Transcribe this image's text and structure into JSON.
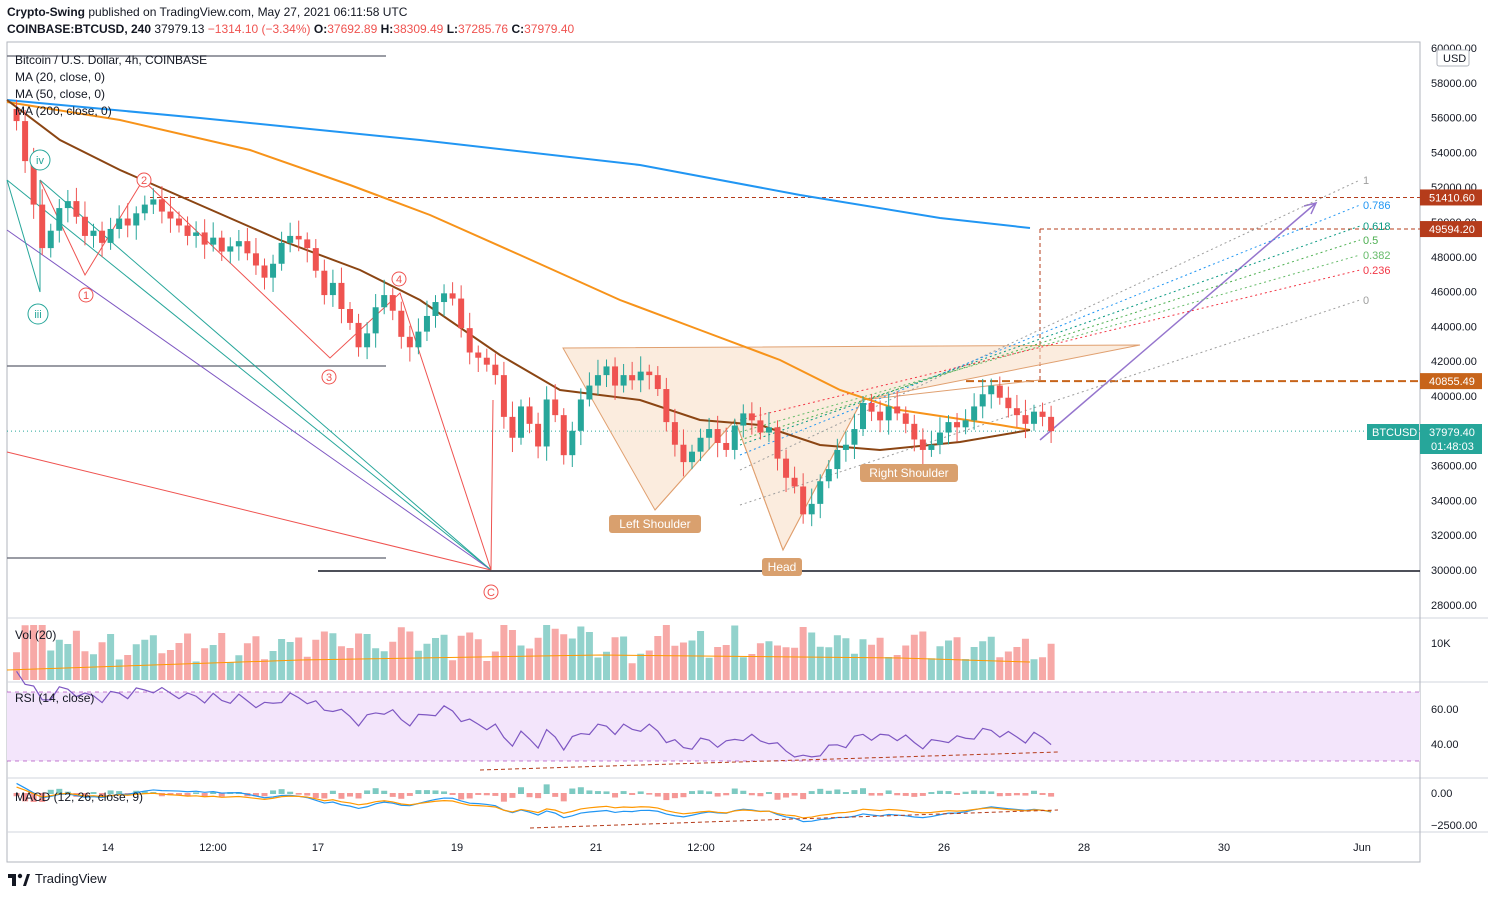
{
  "header": {
    "publisher": "Crypto-Swing",
    "published_line": "published on TradingView.com, May 27, 2021 06:11:58 UTC",
    "symbol": "COINBASE:BTCUSD, 240",
    "last": "37979.13",
    "change": "−1314.10 (−3.34%)",
    "o_label": "O:",
    "o": "37692.89",
    "h_label": "H:",
    "h": "38309.49",
    "l_label": "L:",
    "l": "37285.76",
    "c_label": "C:",
    "c": "37979.40"
  },
  "legend": {
    "title": "Bitcoin / U.S. Dollar, 4h, COINBASE",
    "ma20": "MA (20, close, 0)",
    "ma50": "MA (50, close, 0)",
    "ma200": "MA (200, close, 0)"
  },
  "panes": {
    "vol": "Vol (20)",
    "rsi": "RSI (14, close)",
    "macd": "MACD (12, 26, close, 9)"
  },
  "footer": {
    "brand": "TradingView"
  },
  "colors": {
    "up": "#26a69a",
    "down": "#ef5350",
    "ma20": "#8b4513",
    "ma50": "#f7931a",
    "ma200": "#2196f3",
    "rsi": "#7e57c2",
    "macd": "#2196f3",
    "signal": "#ff9800"
  },
  "chart_data": {
    "type": "candlestick",
    "title": "Bitcoin / U.S. Dollar, 4h, COINBASE",
    "currency": "USD",
    "y_ticks": [
      "60000.00",
      "58000.00",
      "56000.00",
      "54000.00",
      "52000.00",
      "50000.00",
      "48000.00",
      "46000.00",
      "44000.00",
      "42000.00",
      "40000.00",
      "38000.00",
      "36000.00",
      "34000.00",
      "32000.00",
      "30000.00",
      "28000.00"
    ],
    "x_ticks": [
      "14",
      "12:00",
      "17",
      "19",
      "21",
      "12:00",
      "24",
      "26",
      "28",
      "30",
      "Jun"
    ],
    "price_tags": [
      {
        "label": "51410.60",
        "value": 51410.6,
        "color": "#b53c1b"
      },
      {
        "label": "49594.20",
        "value": 49594.2,
        "color": "#b53c1b"
      },
      {
        "label": "40855.49",
        "value": 40855.49,
        "color": "#c7641a"
      }
    ],
    "current": {
      "symbol": "BTCUSD",
      "price": "37979.40",
      "countdown": "01:48:03",
      "value": 37979.4
    },
    "fib_levels": [
      {
        "label": "1",
        "color": "#9e9e9e"
      },
      {
        "label": "0.786",
        "color": "#2196f3"
      },
      {
        "label": "0.618",
        "color": "#089981"
      },
      {
        "label": "0.5",
        "color": "#4caf50"
      },
      {
        "label": "0.382",
        "color": "#66bb6a"
      },
      {
        "label": "0.236",
        "color": "#f23645"
      },
      {
        "label": "0",
        "color": "#9e9e9e"
      }
    ],
    "wave_labels": [
      "iv",
      "iii",
      "1",
      "2",
      "3",
      "4",
      "C"
    ],
    "pattern_labels": {
      "left": "Left Shoulder",
      "head": "Head",
      "right": "Right Shoulder"
    },
    "vol_tick": "10K",
    "rsi_ticks": [
      "60.00",
      "40.00"
    ],
    "macd_ticks": [
      "0.00",
      "−2500.00"
    ],
    "closes": [
      56500,
      55800,
      53500,
      51000,
      48500,
      49500,
      50800,
      51200,
      50300,
      49200,
      49500,
      48800,
      49600,
      50200,
      49800,
      50500,
      51000,
      51300,
      50600,
      50200,
      49800,
      49200,
      49400,
      48700,
      49100,
      48300,
      48600,
      48900,
      48200,
      47500,
      46800,
      47600,
      48800,
      49200,
      49000,
      48500,
      47200,
      45800,
      46500,
      45000,
      44200,
      42800,
      43600,
      45100,
      45800,
      44900,
      43400,
      42800,
      43700,
      44600,
      45400,
      45900,
      45600,
      43900,
      42500,
      42200,
      41800,
      41200,
      38800,
      37600,
      39400,
      38400,
      37100,
      39800,
      38900,
      36600,
      38000,
      39800,
      40600,
      41200,
      41700,
      40600,
      41200,
      40900,
      41400,
      41200,
      40400,
      38500,
      37200,
      36200,
      36800,
      37600,
      38100,
      37300,
      36900,
      38300,
      39000,
      38600,
      37900,
      38200,
      36400,
      35300,
      34800,
      33200,
      33800,
      35100,
      35800,
      36900,
      37200,
      38100,
      39600,
      39100,
      38600,
      39400,
      39000,
      38400,
      37500,
      36900,
      37200,
      37900,
      38500,
      38200,
      38600,
      39400,
      40100,
      40600,
      39900,
      39300,
      38900,
      38400,
      39100,
      38800,
      37980
    ]
  }
}
